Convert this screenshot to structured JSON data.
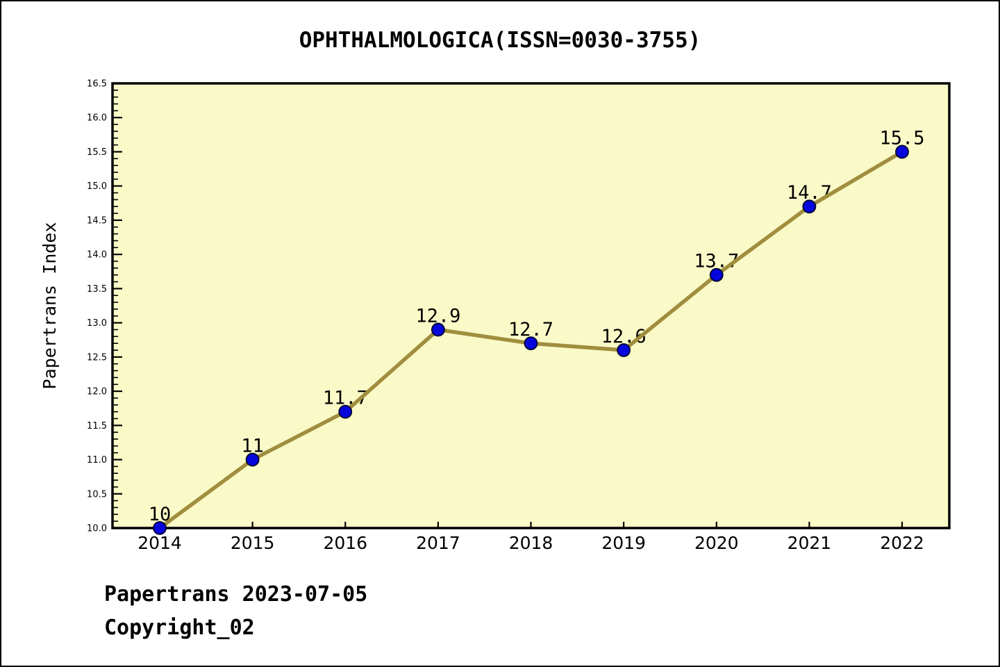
{
  "figure": {
    "title": "OPHTHALMOLOGICA(ISSN=0030-3755)",
    "footer_line1": "Papertrans 2023-07-05",
    "footer_line2": "Copyright_02"
  },
  "chart_data": {
    "type": "line",
    "title": "OPHTHALMOLOGICA(ISSN=0030-3755)",
    "xlabel": "",
    "ylabel": "Papertrans Index",
    "x": [
      2014,
      2015,
      2016,
      2017,
      2018,
      2019,
      2020,
      2021,
      2022
    ],
    "values": [
      10,
      11,
      11.7,
      12.9,
      12.7,
      12.6,
      13.7,
      14.7,
      15.5
    ],
    "point_labels": [
      "10",
      "11",
      "11.7",
      "12.9",
      "12.7",
      "12.6",
      "13.7",
      "14.7",
      "15.5"
    ],
    "ylim": [
      10.0,
      16.5
    ],
    "y_major_step": 0.5,
    "y_minor_step": 0.1,
    "grid": false,
    "legend": null,
    "colors": {
      "figure_bg": "#FFFFFF",
      "plot_bg": "#FAFAC8",
      "line": "#A08E3E",
      "marker_fill": "#0505DC",
      "marker_edge": "#00002A",
      "axis": "#000000",
      "text": "#000000"
    }
  }
}
